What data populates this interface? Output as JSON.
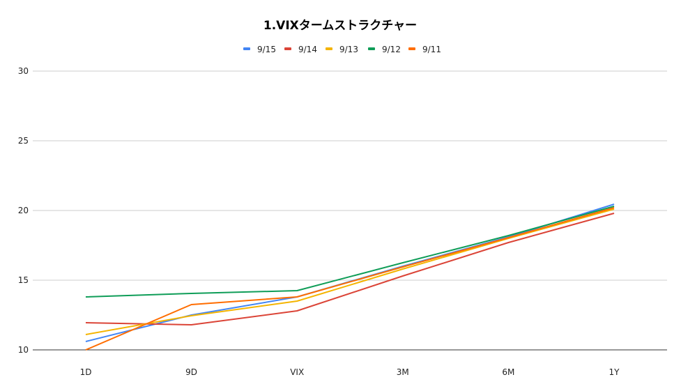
{
  "chart_data": {
    "type": "line",
    "title": "1.VIXタームストラクチャー",
    "xlabel": "",
    "ylabel": "",
    "categories": [
      "1D",
      "9D",
      "VIX",
      "3M",
      "6M",
      "1Y"
    ],
    "ylim": [
      10,
      30
    ],
    "yticks": [
      10,
      15,
      20,
      25,
      30
    ],
    "grid": true,
    "legend_position": "top",
    "series": [
      {
        "name": "9/15",
        "color": "#4285f4",
        "values": [
          10.6,
          12.5,
          13.8,
          16.0,
          18.1,
          20.45
        ]
      },
      {
        "name": "9/14",
        "color": "#db4437",
        "values": [
          11.95,
          11.8,
          12.8,
          15.3,
          17.7,
          19.8
        ]
      },
      {
        "name": "9/13",
        "color": "#f4b400",
        "values": [
          11.1,
          12.45,
          13.5,
          15.8,
          18.0,
          20.1
        ]
      },
      {
        "name": "9/12",
        "color": "#0f9d58",
        "values": [
          13.8,
          14.05,
          14.25,
          16.25,
          18.2,
          20.3
        ]
      },
      {
        "name": "9/11",
        "color": "#ff6d00",
        "values": [
          10.0,
          13.25,
          13.8,
          15.95,
          18.05,
          20.2
        ]
      }
    ]
  }
}
